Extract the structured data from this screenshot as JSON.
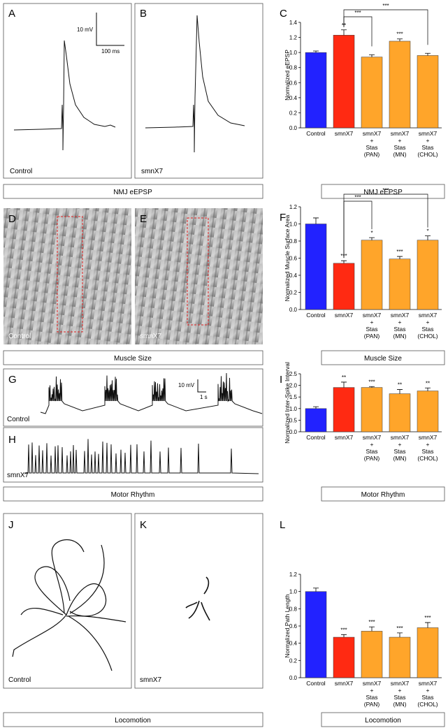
{
  "figure": {
    "letters": [
      "A",
      "B",
      "C",
      "D",
      "E",
      "F",
      "G",
      "H",
      "I",
      "J",
      "K",
      "L"
    ],
    "conditions": [
      "Control",
      "smnX7"
    ],
    "captions": [
      "NMJ eEPSP",
      "Muscle Size",
      "Motor Rhythm",
      "Locomotion"
    ],
    "scale_bars": [
      "10 mV",
      "100 ms",
      "10 mV",
      "1 s"
    ]
  },
  "chart_data": [
    {
      "type": "bar",
      "y_label": "Normalized eEPSP",
      "categories": [
        "Control",
        "smnX7",
        "smnX7\n+\nStas\n(PAN)",
        "smnX7\n+\nStas\n(MN)",
        "smnX7\n+\nStas\n(CHOL)"
      ],
      "values": [
        1.0,
        1.23,
        0.94,
        1.15,
        0.96
      ],
      "errors": [
        0.02,
        0.07,
        0.03,
        0.03,
        0.03
      ],
      "colors": [
        "#2222ff",
        "#ff2a12",
        "#ffa52a",
        "#ffa52a",
        "#ffa52a"
      ],
      "annotations": [
        null,
        "**",
        null,
        "***",
        null
      ],
      "brackets": [
        {
          "from": 1,
          "to": 2,
          "label": "***"
        },
        {
          "from": 1,
          "to": 4,
          "label": "***"
        }
      ],
      "ylim": [
        0,
        1.4
      ],
      "yticks": [
        {
          "value": 0,
          "label": "0.0"
        },
        0.2,
        0.4,
        0.6,
        0.8,
        {
          "value": 1,
          "label": "1.0"
        },
        1.2,
        1.4
      ]
    },
    {
      "type": "bar",
      "y_label": "Normalized Muscle Surface Area",
      "categories": [
        "Control",
        "smnX7",
        "smnX7\n+\nStas\n(PAN)",
        "smnX7\n+\nStas\n(MN)",
        "smnX7\n+\nStas\n(CHOL)"
      ],
      "values": [
        1.0,
        0.54,
        0.81,
        0.59,
        0.81
      ],
      "errors": [
        0.07,
        0.03,
        0.03,
        0.03,
        0.05
      ],
      "colors": [
        "#2222ff",
        "#ff2a12",
        "#ffa52a",
        "#ffa52a",
        "#ffa52a"
      ],
      "annotations": [
        null,
        "***",
        "*",
        "***",
        "*"
      ],
      "brackets": [
        {
          "from": 1,
          "to": 2,
          "label": "***"
        },
        {
          "from": 1,
          "to": 4,
          "label": "***"
        }
      ],
      "ylim": [
        0,
        1.2
      ],
      "yticks": [
        {
          "value": 0,
          "label": "0.0"
        },
        0.2,
        0.4,
        0.6,
        0.8,
        {
          "value": 1,
          "label": "1.0"
        },
        1.2
      ]
    },
    {
      "type": "bar",
      "y_label": "Normalized Inter-Spike Interval",
      "categories": [
        "Control",
        "smnX7",
        "smnX7\n+\nStas\n(PAN)",
        "smnX7\n+\nStas\n(MN)",
        "smnX7\n+\nStas\n(CHOL)"
      ],
      "values": [
        1.0,
        1.91,
        1.91,
        1.64,
        1.76
      ],
      "errors": [
        0.08,
        0.23,
        0.04,
        0.18,
        0.13
      ],
      "colors": [
        "#2222ff",
        "#ff2a12",
        "#ffa52a",
        "#ffa52a",
        "#ffa52a"
      ],
      "annotations": [
        null,
        "**",
        "***",
        "**",
        "**"
      ],
      "brackets": [],
      "ylim": [
        0,
        2.5
      ],
      "yticks": [
        {
          "value": 0,
          "label": "0.0"
        },
        0.5,
        {
          "value": 1,
          "label": "1.0"
        },
        1.5,
        {
          "value": 2,
          "label": "2.0"
        },
        2.5
      ]
    },
    {
      "type": "bar",
      "y_label": "Normalized Path Length",
      "categories": [
        "Control",
        "smnX7",
        "smnX7\n+\nStas\n(PAN)",
        "smnX7\n+\nStas\n(MN)",
        "smnX7\n+\nStas\n(CHOL)"
      ],
      "values": [
        1.0,
        0.47,
        0.54,
        0.47,
        0.58
      ],
      "errors": [
        0.04,
        0.03,
        0.05,
        0.05,
        0.06
      ],
      "colors": [
        "#2222ff",
        "#ff2a12",
        "#ffa52a",
        "#ffa52a",
        "#ffa52a"
      ],
      "annotations": [
        null,
        "***",
        "***",
        "***",
        "***"
      ],
      "brackets": [],
      "ylim": [
        0,
        1.2
      ],
      "yticks": [
        {
          "value": 0,
          "label": "0.0"
        },
        0.2,
        0.4,
        0.6,
        0.8,
        {
          "value": 1,
          "label": "1.0"
        },
        1.2
      ]
    }
  ]
}
